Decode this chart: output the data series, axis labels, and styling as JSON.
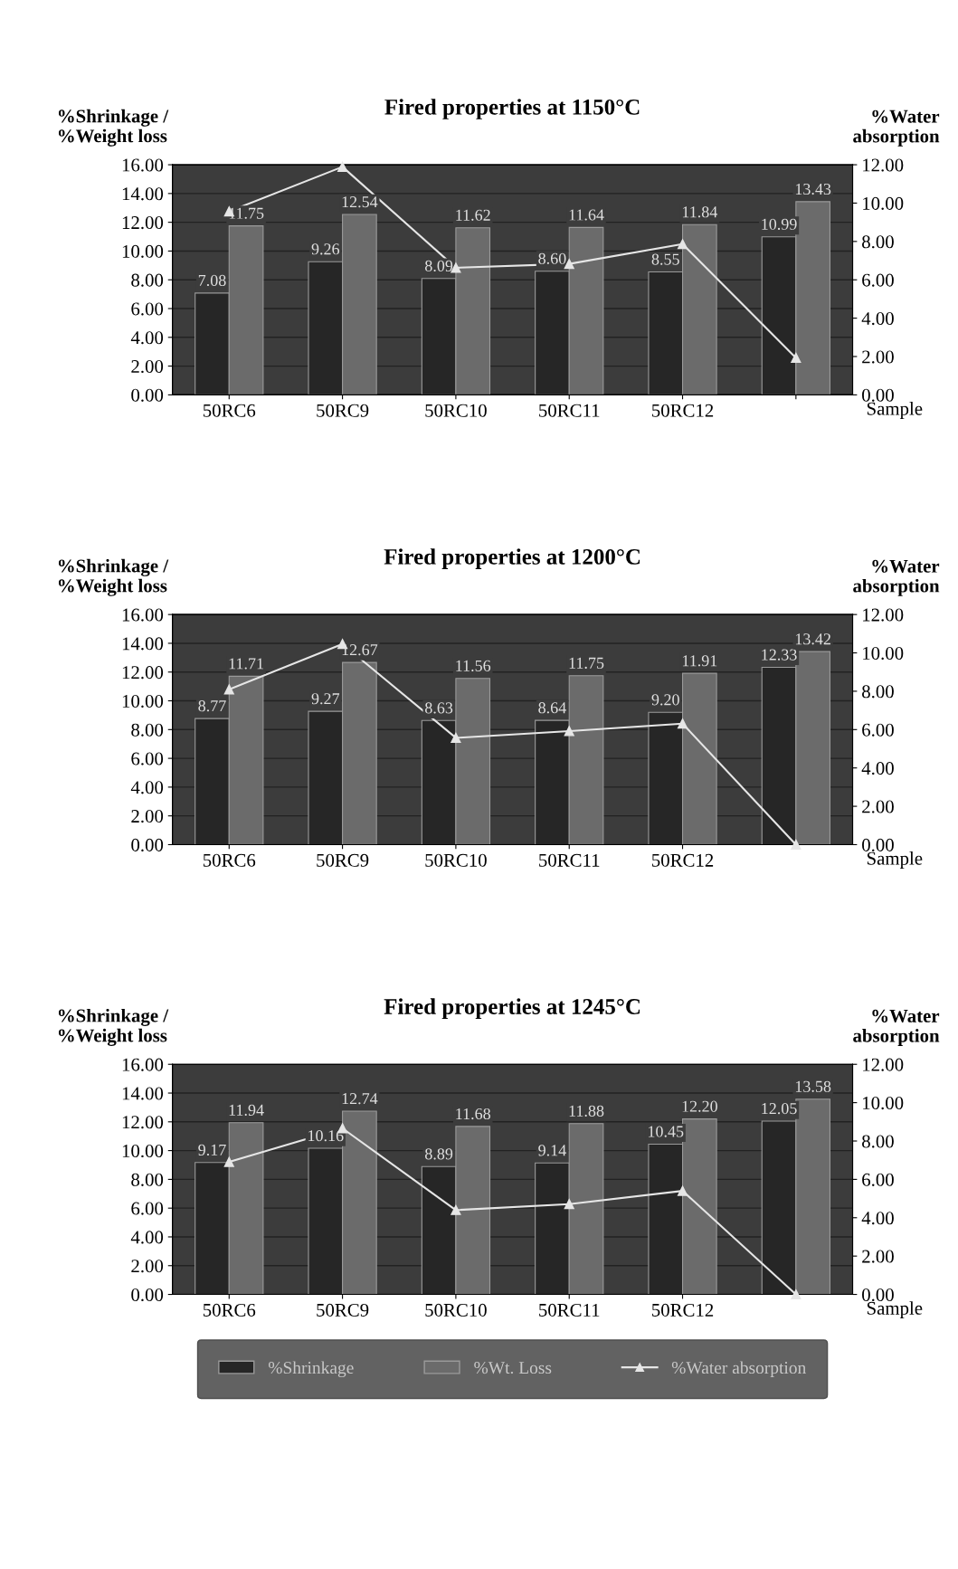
{
  "chart_data": [
    {
      "type": "bar",
      "title": "Fired properties at 1150°C",
      "xlabel": "Sample",
      "ylabel": "%Shrinkage /\n%Weight loss",
      "y2label": "%Water\nabsorption",
      "categories": [
        "50RC6",
        "50RC9",
        "50RC10",
        "50RC11",
        "50RC12",
        null
      ],
      "series": [
        {
          "color": "#262626",
          "values": [
            7.08,
            9.26,
            8.09,
            8.6,
            8.55,
            10.99
          ],
          "value_labels": [
            "7.08",
            "9.26",
            "8.09",
            "8.60",
            "8.55",
            "10.99"
          ]
        },
        {
          "color": "#6b6b6b",
          "values": [
            11.75,
            12.54,
            11.62,
            11.64,
            11.84,
            13.43
          ],
          "value_labels": [
            "11.75",
            "12.54",
            "11.62",
            "11.64",
            "11.84",
            "13.43"
          ]
        },
        {
          "type": "line",
          "axis": "y2",
          "color": "#e6e6e6",
          "marker": "triangle",
          "values": [
            9.57,
            11.89,
            6.63,
            6.83,
            7.86,
            1.93
          ]
        }
      ],
      "ylim": [
        0,
        16
      ],
      "yticks": [
        {
          "value": 0,
          "label": "0.00"
        },
        {
          "value": 2,
          "label": "2.00"
        },
        {
          "value": 4,
          "label": "4.00"
        },
        {
          "value": 6,
          "label": "6.00"
        },
        {
          "value": 8,
          "label": "8.00"
        },
        {
          "value": 10,
          "label": "10.00"
        },
        {
          "value": 12,
          "label": "12.00"
        },
        {
          "value": 14,
          "label": "14.00"
        },
        {
          "value": 16,
          "label": "16.00"
        }
      ],
      "y2lim": [
        0,
        12
      ],
      "y2ticks": [
        {
          "value": 0,
          "label": "0.00"
        },
        {
          "value": 2,
          "label": "2.00"
        },
        {
          "value": 4,
          "label": "4.00"
        },
        {
          "value": 6,
          "label": "6.00"
        },
        {
          "value": 8,
          "label": "8.00"
        },
        {
          "value": 10,
          "label": "10.00"
        },
        {
          "value": 12,
          "label": "12.00"
        }
      ],
      "grid": "y",
      "legend": false
    },
    {
      "type": "bar",
      "title": "Fired properties at 1200°C",
      "xlabel": "Sample",
      "ylabel": "%Shrinkage /\n%Weight loss",
      "y2label": "%Water\nabsorption",
      "categories": [
        "50RC6",
        "50RC9",
        "50RC10",
        "50RC11",
        "50RC12",
        null
      ],
      "series": [
        {
          "color": "#262626",
          "values": [
            8.77,
            9.27,
            8.63,
            8.64,
            9.2,
            12.33
          ],
          "value_labels": [
            "8.77",
            "9.27",
            "8.63",
            "8.64",
            "9.20",
            "12.33"
          ]
        },
        {
          "color": "#6b6b6b",
          "values": [
            11.71,
            12.67,
            11.56,
            11.75,
            11.91,
            13.42
          ],
          "value_labels": [
            "11.71",
            "12.67",
            "11.56",
            "11.75",
            "11.91",
            "13.42"
          ]
        },
        {
          "type": "line",
          "axis": "y2",
          "color": "#e6e6e6",
          "marker": "triangle",
          "values": [
            8.09,
            10.46,
            5.57,
            5.92,
            6.31,
            0
          ]
        }
      ],
      "ylim": [
        0,
        16
      ],
      "yticks": [
        {
          "value": 0,
          "label": "0.00"
        },
        {
          "value": 2,
          "label": "2.00"
        },
        {
          "value": 4,
          "label": "4.00"
        },
        {
          "value": 6,
          "label": "6.00"
        },
        {
          "value": 8,
          "label": "8.00"
        },
        {
          "value": 10,
          "label": "10.00"
        },
        {
          "value": 12,
          "label": "12.00"
        },
        {
          "value": 14,
          "label": "14.00"
        },
        {
          "value": 16,
          "label": "16.00"
        }
      ],
      "y2lim": [
        0,
        12
      ],
      "y2ticks": [
        {
          "value": 0,
          "label": "0.00"
        },
        {
          "value": 2,
          "label": "2.00"
        },
        {
          "value": 4,
          "label": "4.00"
        },
        {
          "value": 6,
          "label": "6.00"
        },
        {
          "value": 8,
          "label": "8.00"
        },
        {
          "value": 10,
          "label": "10.00"
        },
        {
          "value": 12,
          "label": "12.00"
        }
      ],
      "grid": "y",
      "legend": false
    },
    {
      "type": "bar",
      "title": "Fired properties at 1245°C",
      "xlabel": "Sample",
      "ylabel": "%Shrinkage /\n%Weight loss",
      "y2label": "%Water\nabsorption",
      "categories": [
        "50RC6",
        "50RC9",
        "50RC10",
        "50RC11",
        "50RC12",
        null
      ],
      "series": [
        {
          "name": "%Shrinkage",
          "color": "#262626",
          "values": [
            9.17,
            10.16,
            8.89,
            9.14,
            10.45,
            12.05
          ],
          "value_labels": [
            "9.17",
            "10.16",
            "8.89",
            "9.14",
            "10.45",
            "12.05"
          ]
        },
        {
          "name": "%Wt. Loss",
          "color": "#6b6b6b",
          "values": [
            11.94,
            12.74,
            11.68,
            11.88,
            12.2,
            13.58
          ],
          "value_labels": [
            "11.94",
            "12.74",
            "11.68",
            "11.88",
            "12.20",
            "13.58"
          ]
        },
        {
          "name": "%Water absorption",
          "type": "line",
          "axis": "y2",
          "color": "#e6e6e6",
          "marker": "triangle",
          "values": [
            6.91,
            8.66,
            4.4,
            4.71,
            5.4,
            0
          ]
        }
      ],
      "ylim": [
        0,
        16
      ],
      "yticks": [
        {
          "value": 0,
          "label": "0.00"
        },
        {
          "value": 2,
          "label": "2.00"
        },
        {
          "value": 4,
          "label": "4.00"
        },
        {
          "value": 6,
          "label": "6.00"
        },
        {
          "value": 8,
          "label": "8.00"
        },
        {
          "value": 10,
          "label": "10.00"
        },
        {
          "value": 12,
          "label": "12.00"
        },
        {
          "value": 14,
          "label": "14.00"
        },
        {
          "value": 16,
          "label": "16.00"
        }
      ],
      "y2lim": [
        0,
        12
      ],
      "y2ticks": [
        {
          "value": 0,
          "label": "0.00"
        },
        {
          "value": 2,
          "label": "2.00"
        },
        {
          "value": 4,
          "label": "4.00"
        },
        {
          "value": 6,
          "label": "6.00"
        },
        {
          "value": 8,
          "label": "8.00"
        },
        {
          "value": 10,
          "label": "10.00"
        },
        {
          "value": 12,
          "label": "12.00"
        }
      ],
      "grid": "y",
      "legend": "bottom"
    }
  ]
}
